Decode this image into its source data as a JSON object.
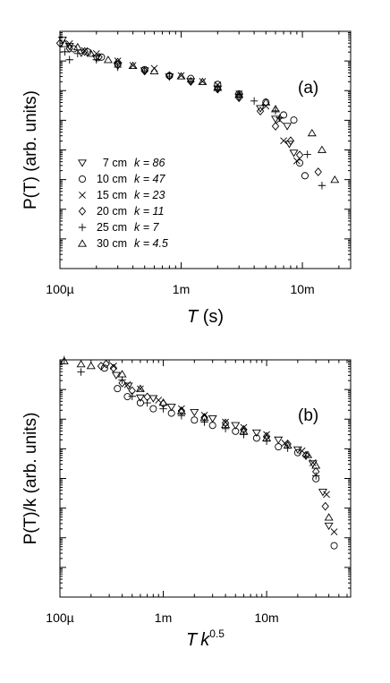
{
  "chart_data": [
    {
      "type": "scatter",
      "panel_label": "(a)",
      "xlabel": {
        "main": "T",
        "unit": " (s)"
      },
      "ylabel": "P(T) (arb. units)",
      "xscale": "log",
      "yscale": "log",
      "xlim": [
        0.0001,
        0.025
      ],
      "ylim": [
        1,
        100000000
      ],
      "xticks": [
        {
          "value": 0.0001,
          "label": "100µ"
        },
        {
          "value": 0.001,
          "label": "1m"
        },
        {
          "value": 0.01,
          "label": "10m"
        }
      ],
      "legend_placement": "lower-left",
      "series": [
        {
          "name": "7 cm",
          "k_label": "k = 86",
          "marker": "triangle-down",
          "x": [
            0.000105,
            0.00012,
            0.00015,
            0.0002,
            0.0003,
            0.0005,
            0.0008,
            0.0012,
            0.002,
            0.003,
            0.0045,
            0.006,
            0.0075,
            0.0078,
            0.0085
          ],
          "y": [
            51300000,
            31600000,
            18600000,
            12300000,
            6900000,
            4700000,
            2950000,
            2040000,
            1150000,
            617000,
            251000,
            110000,
            63100,
            15800,
            7940
          ]
        },
        {
          "name": "10 cm",
          "k_label": "k = 47",
          "marker": "circle",
          "x": [
            0.00013,
            0.00017,
            0.00022,
            0.0003,
            0.0005,
            0.0008,
            0.0012,
            0.002,
            0.003,
            0.005,
            0.007,
            0.0085,
            0.0095,
            0.0105
          ],
          "y": [
            25700000,
            20000000,
            13500000,
            7760000,
            5130000,
            3160000,
            2570000,
            1620000,
            776000,
            407000,
            151000,
            102000,
            3630,
            1350
          ]
        },
        {
          "name": "15 cm",
          "k_label": "k = 23",
          "marker": "cross",
          "x": [
            0.00012,
            0.00016,
            0.0002,
            0.0003,
            0.0004,
            0.0006,
            0.001,
            0.0015,
            0.002,
            0.003,
            0.005,
            0.0065,
            0.007,
            0.009
          ],
          "y": [
            38000000,
            22400000,
            17800000,
            10000000,
            7080000,
            5620000,
            3240000,
            2040000,
            1550000,
            776000,
            302000,
            102000,
            20400,
            4270
          ]
        },
        {
          "name": "20 cm",
          "k_label": "k = 11",
          "marker": "diamond",
          "x": [
            0.0001,
            0.00012,
            0.00016,
            0.00021,
            0.0003,
            0.0005,
            0.0008,
            0.0012,
            0.002,
            0.003,
            0.0045,
            0.006,
            0.008,
            0.0095,
            0.0135
          ],
          "y": [
            39800000,
            26300000,
            20900000,
            13500000,
            9120000,
            4570000,
            3240000,
            2040000,
            1120000,
            575000,
            204000,
            63100,
            20400,
            6760,
            1820
          ]
        },
        {
          "name": "25 cm",
          "k_label": "k = 7",
          "marker": "plus",
          "x": [
            0.00011,
            0.00012,
            0.00014,
            0.0002,
            0.0003,
            0.0005,
            0.0008,
            0.0012,
            0.002,
            0.003,
            0.004,
            0.006,
            0.0065,
            0.011,
            0.0145
          ],
          "y": [
            20400000,
            11000000,
            17800000,
            11000000,
            6170000,
            4680000,
            3090000,
            2000000,
            1120000,
            741000,
            447000,
            209000,
            120000,
            7080,
            631
          ]
        },
        {
          "name": "30 cm",
          "k_label": "k = 4.5",
          "marker": "triangle-up",
          "x": [
            0.00011,
            0.00014,
            0.00018,
            0.00025,
            0.0004,
            0.0006,
            0.001,
            0.0015,
            0.002,
            0.003,
            0.005,
            0.006,
            0.012,
            0.0145,
            0.0185
          ],
          "y": [
            38000000,
            29500000,
            17800000,
            11000000,
            6920000,
            4570000,
            3090000,
            2000000,
            1260000,
            741000,
            407000,
            240000,
            37200,
            10200,
            1000
          ]
        }
      ]
    },
    {
      "type": "scatter",
      "panel_label": "(b)",
      "xlabel": {
        "main": "T",
        "k": "k",
        "exponent": "0.5"
      },
      "ylabel": "P(T)/k (arb. units)",
      "xscale": "log",
      "yscale": "log",
      "xlim": [
        0.0001,
        0.065
      ],
      "ylim": [
        1,
        100000000
      ],
      "xticks": [
        {
          "value": 0.0001,
          "label": "100µ"
        },
        {
          "value": 0.001,
          "label": "1m"
        },
        {
          "value": 0.01,
          "label": "10m"
        }
      ],
      "series": [
        {
          "name": "7 cm",
          "marker": "triangle-down",
          "x": [
            0.00035,
            0.00046,
            0.0006,
            0.0008,
            0.0012,
            0.002,
            0.003,
            0.005,
            0.008,
            0.013,
            0.02,
            0.028,
            0.035,
            0.04
          ],
          "y": [
            30200000,
            13200000,
            5250000,
            5010000,
            2570000,
            1700000,
            1050000,
            617000,
            347000,
            200000,
            93300,
            31600,
            3470,
            251
          ]
        },
        {
          "name": "10 cm",
          "marker": "circle",
          "x": [
            0.00027,
            0.00036,
            0.00045,
            0.0006,
            0.0008,
            0.0012,
            0.002,
            0.003,
            0.005,
            0.008,
            0.013,
            0.02,
            0.03,
            0.045
          ],
          "y": [
            52500000,
            10700000,
            5750000,
            3550000,
            2240000,
            1590000,
            933000,
            617000,
            389000,
            229000,
            117000,
            74100,
            9770,
            54
          ]
        },
        {
          "name": "15 cm",
          "marker": "cross",
          "x": [
            0.00033,
            0.00045,
            0.0006,
            0.0009,
            0.0015,
            0.0025,
            0.004,
            0.006,
            0.01,
            0.015,
            0.022,
            0.028,
            0.038,
            0.045
          ],
          "y": [
            61700000,
            14500000,
            10500000,
            4370000,
            2240000,
            1350000,
            794000,
            525000,
            302000,
            155000,
            85100,
            33900,
            2880,
            158
          ]
        },
        {
          "name": "20 cm",
          "marker": "diamond",
          "x": [
            0.00025,
            0.00028,
            0.00033,
            0.0004,
            0.0005,
            0.0007,
            0.001,
            0.0015,
            0.0025,
            0.004,
            0.006,
            0.01,
            0.016,
            0.024,
            0.03,
            0.037
          ],
          "y": [
            61700000,
            72400000,
            52500000,
            16600000,
            9120000,
            5620000,
            3310000,
            1910000,
            1150000,
            741000,
            447000,
            263000,
            145000,
            60300,
            17000,
            1150
          ]
        },
        {
          "name": "25 cm",
          "marker": "plus",
          "x": [
            0.00011,
            0.00016,
            0.0004,
            0.0005,
            0.0007,
            0.001,
            0.0015,
            0.0025,
            0.004,
            0.006,
            0.01,
            0.016,
            0.024,
            0.03
          ],
          "y": [
            100000000,
            38900000,
            20900000,
            5890000,
            3550000,
            2240000,
            1320000,
            794000,
            479000,
            302000,
            182000,
            105000,
            56200,
            12300
          ]
        },
        {
          "name": "30 cm",
          "marker": "triangle-up",
          "x": [
            0.00011,
            0.00016,
            0.0002,
            0.0004,
            0.0006,
            0.001,
            0.0015,
            0.0025,
            0.004,
            0.006,
            0.01,
            0.016,
            0.025,
            0.03,
            0.04
          ],
          "y": [
            91200000,
            72400000,
            63100000,
            33100000,
            10700000,
            3630000,
            1860000,
            1120000,
            646000,
            389000,
            229000,
            132000,
            63100,
            27500,
            490
          ]
        }
      ]
    }
  ]
}
